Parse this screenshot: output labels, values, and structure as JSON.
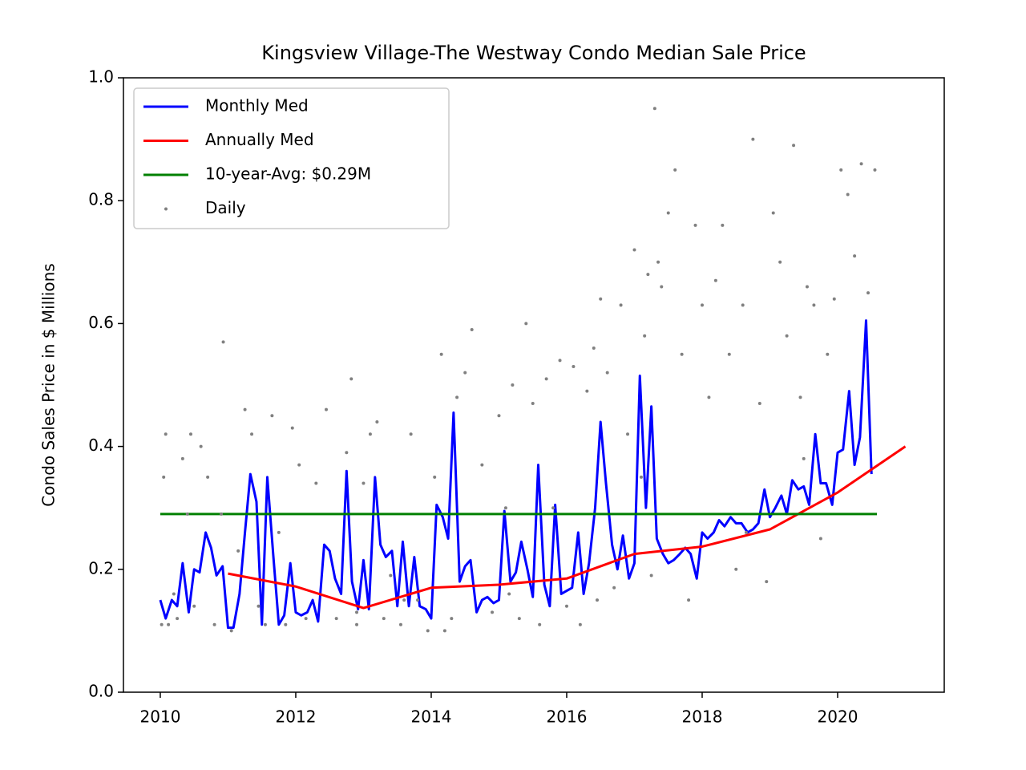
{
  "chart_data": {
    "type": "line",
    "title": "Kingsview Village-The Westway Condo Median Sale Price",
    "ylabel": "Condo Sales Price in $ Millions",
    "xlim": [
      2009.456,
      2021.574
    ],
    "ylim": [
      0,
      1
    ],
    "xticks": [
      2010,
      2012,
      2014,
      2016,
      2018,
      2020
    ],
    "yticks": [
      {
        "value": 0,
        "label": "0.0"
      },
      0.2,
      0.4,
      0.6,
      0.8,
      {
        "value": 1,
        "label": "1.0"
      }
    ],
    "legend": "upper left",
    "series": [
      {
        "name": "Monthly Med",
        "color": "#0000ff",
        "kind": "line",
        "x": [
          2010.0,
          2010.08,
          2010.17,
          2010.25,
          2010.33,
          2010.42,
          2010.5,
          2010.58,
          2010.67,
          2010.75,
          2010.83,
          2010.92,
          2011.0,
          2011.08,
          2011.17,
          2011.25,
          2011.33,
          2011.42,
          2011.5,
          2011.58,
          2011.67,
          2011.75,
          2011.83,
          2011.92,
          2012.0,
          2012.08,
          2012.17,
          2012.25,
          2012.33,
          2012.42,
          2012.5,
          2012.58,
          2012.67,
          2012.75,
          2012.83,
          2012.92,
          2013.0,
          2013.08,
          2013.17,
          2013.25,
          2013.33,
          2013.42,
          2013.5,
          2013.58,
          2013.67,
          2013.75,
          2013.83,
          2013.92,
          2014.0,
          2014.08,
          2014.17,
          2014.25,
          2014.33,
          2014.42,
          2014.5,
          2014.58,
          2014.67,
          2014.75,
          2014.83,
          2014.92,
          2015.0,
          2015.08,
          2015.17,
          2015.25,
          2015.33,
          2015.42,
          2015.5,
          2015.58,
          2015.67,
          2015.75,
          2015.83,
          2015.92,
          2016.0,
          2016.08,
          2016.17,
          2016.25,
          2016.33,
          2016.42,
          2016.5,
          2016.58,
          2016.67,
          2016.75,
          2016.83,
          2016.92,
          2017.0,
          2017.08,
          2017.17,
          2017.25,
          2017.33,
          2017.42,
          2017.5,
          2017.58,
          2017.67,
          2017.75,
          2017.83,
          2017.92,
          2018.0,
          2018.08,
          2018.17,
          2018.25,
          2018.33,
          2018.42,
          2018.5,
          2018.58,
          2018.67,
          2018.75,
          2018.83,
          2018.92,
          2019.0,
          2019.08,
          2019.17,
          2019.25,
          2019.33,
          2019.42,
          2019.5,
          2019.58,
          2019.67,
          2019.75,
          2019.83,
          2019.92,
          2020.0,
          2020.08,
          2020.17,
          2020.25,
          2020.33,
          2020.42,
          2020.5
        ],
        "values": [
          0.15,
          0.12,
          0.15,
          0.14,
          0.21,
          0.13,
          0.2,
          0.195,
          0.26,
          0.235,
          0.19,
          0.205,
          0.105,
          0.105,
          0.16,
          0.26,
          0.355,
          0.31,
          0.11,
          0.35,
          0.22,
          0.11,
          0.125,
          0.21,
          0.13,
          0.125,
          0.13,
          0.15,
          0.115,
          0.24,
          0.23,
          0.185,
          0.16,
          0.36,
          0.18,
          0.135,
          0.215,
          0.135,
          0.35,
          0.24,
          0.22,
          0.23,
          0.14,
          0.245,
          0.14,
          0.22,
          0.14,
          0.135,
          0.12,
          0.305,
          0.285,
          0.25,
          0.455,
          0.18,
          0.205,
          0.215,
          0.13,
          0.15,
          0.155,
          0.145,
          0.15,
          0.295,
          0.18,
          0.195,
          0.245,
          0.2,
          0.155,
          0.37,
          0.175,
          0.14,
          0.305,
          0.16,
          0.165,
          0.17,
          0.26,
          0.16,
          0.21,
          0.3,
          0.44,
          0.34,
          0.24,
          0.2,
          0.255,
          0.185,
          0.21,
          0.515,
          0.3,
          0.465,
          0.25,
          0.225,
          0.21,
          0.215,
          0.225,
          0.235,
          0.225,
          0.185,
          0.26,
          0.25,
          0.26,
          0.28,
          0.27,
          0.285,
          0.275,
          0.275,
          0.26,
          0.265,
          0.275,
          0.33,
          0.285,
          0.3,
          0.32,
          0.29,
          0.345,
          0.33,
          0.335,
          0.305,
          0.42,
          0.34,
          0.34,
          0.305,
          0.39,
          0.395,
          0.49,
          0.37,
          0.415,
          0.605,
          0.355
        ]
      },
      {
        "name": "Annually Med",
        "color": "#ff0000",
        "kind": "line",
        "x": [
          2011,
          2012,
          2013,
          2014,
          2015,
          2016,
          2017,
          2018,
          2019,
          2020,
          2021
        ],
        "values": [
          0.193,
          0.172,
          0.137,
          0.17,
          0.175,
          0.185,
          0.225,
          0.237,
          0.265,
          0.325,
          0.4
        ]
      },
      {
        "name": "10-year-Avg: $0.29M",
        "color": "#008000",
        "kind": "line",
        "x": [
          2010,
          2020.58
        ],
        "values": [
          0.29,
          0.29
        ]
      },
      {
        "name": "Daily",
        "color": "#808080",
        "kind": "scatter",
        "x": [
          2010.02,
          2010.05,
          2010.08,
          2010.12,
          2010.2,
          2010.25,
          2010.33,
          2010.4,
          2010.45,
          2010.5,
          2010.6,
          2010.7,
          2010.8,
          2010.9,
          2010.93,
          2011.05,
          2011.15,
          2011.25,
          2011.35,
          2011.45,
          2011.55,
          2011.65,
          2011.75,
          2011.85,
          2011.95,
          2012.05,
          2012.15,
          2012.3,
          2012.45,
          2012.6,
          2012.75,
          2012.82,
          2012.9,
          2013.0,
          2013.1,
          2013.2,
          2013.3,
          2013.4,
          2013.55,
          2013.7,
          2013.8,
          2013.95,
          2014.05,
          2014.15,
          2014.3,
          2014.38,
          2014.5,
          2014.6,
          2014.75,
          2014.9,
          2015.0,
          2015.1,
          2015.2,
          2015.3,
          2015.4,
          2015.5,
          2015.6,
          2015.7,
          2015.8,
          2015.9,
          2016.0,
          2016.1,
          2016.2,
          2016.3,
          2016.4,
          2016.5,
          2016.6,
          2016.7,
          2016.8,
          2016.9,
          2017.0,
          2017.1,
          2017.15,
          2017.2,
          2017.3,
          2017.35,
          2017.4,
          2017.5,
          2017.6,
          2017.7,
          2017.8,
          2017.9,
          2018.0,
          2018.1,
          2018.2,
          2018.3,
          2018.4,
          2018.5,
          2018.6,
          2018.75,
          2018.85,
          2018.95,
          2019.05,
          2019.15,
          2019.25,
          2019.35,
          2019.45,
          2019.55,
          2019.65,
          2019.75,
          2019.85,
          2019.95,
          2020.05,
          2020.15,
          2020.25,
          2020.35,
          2020.45,
          2020.55,
          2012.9,
          2013.6,
          2014.2,
          2015.15,
          2016.45,
          2017.25,
          2018.65,
          2019.5
        ],
        "values": [
          0.11,
          0.35,
          0.42,
          0.11,
          0.16,
          0.12,
          0.38,
          0.29,
          0.42,
          0.14,
          0.4,
          0.35,
          0.11,
          0.29,
          0.57,
          0.1,
          0.23,
          0.46,
          0.42,
          0.14,
          0.11,
          0.45,
          0.26,
          0.11,
          0.43,
          0.37,
          0.12,
          0.34,
          0.46,
          0.12,
          0.39,
          0.51,
          0.13,
          0.34,
          0.42,
          0.44,
          0.12,
          0.19,
          0.11,
          0.42,
          0.15,
          0.1,
          0.35,
          0.55,
          0.12,
          0.48,
          0.52,
          0.59,
          0.37,
          0.13,
          0.45,
          0.3,
          0.5,
          0.12,
          0.6,
          0.47,
          0.11,
          0.51,
          0.3,
          0.54,
          0.14,
          0.53,
          0.11,
          0.49,
          0.56,
          0.64,
          0.52,
          0.17,
          0.63,
          0.42,
          0.72,
          0.35,
          0.58,
          0.68,
          0.95,
          0.7,
          0.66,
          0.78,
          0.85,
          0.55,
          0.15,
          0.76,
          0.63,
          0.48,
          0.67,
          0.76,
          0.55,
          0.2,
          0.63,
          0.9,
          0.47,
          0.18,
          0.78,
          0.7,
          0.58,
          0.89,
          0.48,
          0.66,
          0.63,
          0.25,
          0.55,
          0.64,
          0.85,
          0.81,
          0.71,
          0.86,
          0.65,
          0.85,
          0.11,
          0.15,
          0.1,
          0.16,
          0.15,
          0.19,
          0.26,
          0.38
        ]
      }
    ]
  }
}
